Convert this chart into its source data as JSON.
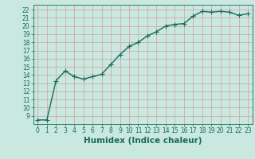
{
  "x": [
    0,
    1,
    2,
    3,
    4,
    5,
    6,
    7,
    8,
    9,
    10,
    11,
    12,
    13,
    14,
    15,
    16,
    17,
    18,
    19,
    20,
    21,
    22,
    23
  ],
  "y": [
    8.5,
    8.5,
    13.3,
    14.5,
    13.8,
    13.5,
    13.8,
    14.1,
    15.3,
    16.5,
    17.5,
    18.0,
    18.8,
    19.3,
    20.0,
    20.2,
    20.3,
    21.2,
    21.8,
    21.7,
    21.8,
    21.7,
    21.3,
    21.5
  ],
  "line_color": "#1a6b5a",
  "marker": "+",
  "marker_size": 4,
  "bg_color": "#c8e8e0",
  "grid_color": "#d4a0a0",
  "xlabel": "Humidex (Indice chaleur)",
  "xlim": [
    -0.5,
    23.5
  ],
  "ylim": [
    8.0,
    22.6
  ],
  "yticks": [
    9,
    10,
    11,
    12,
    13,
    14,
    15,
    16,
    17,
    18,
    19,
    20,
    21,
    22
  ],
  "xticks": [
    0,
    1,
    2,
    3,
    4,
    5,
    6,
    7,
    8,
    9,
    10,
    11,
    12,
    13,
    14,
    15,
    16,
    17,
    18,
    19,
    20,
    21,
    22,
    23
  ],
  "tick_fontsize": 5.5,
  "xlabel_fontsize": 7.5,
  "line_width": 1.0,
  "marker_edge_width": 0.8
}
